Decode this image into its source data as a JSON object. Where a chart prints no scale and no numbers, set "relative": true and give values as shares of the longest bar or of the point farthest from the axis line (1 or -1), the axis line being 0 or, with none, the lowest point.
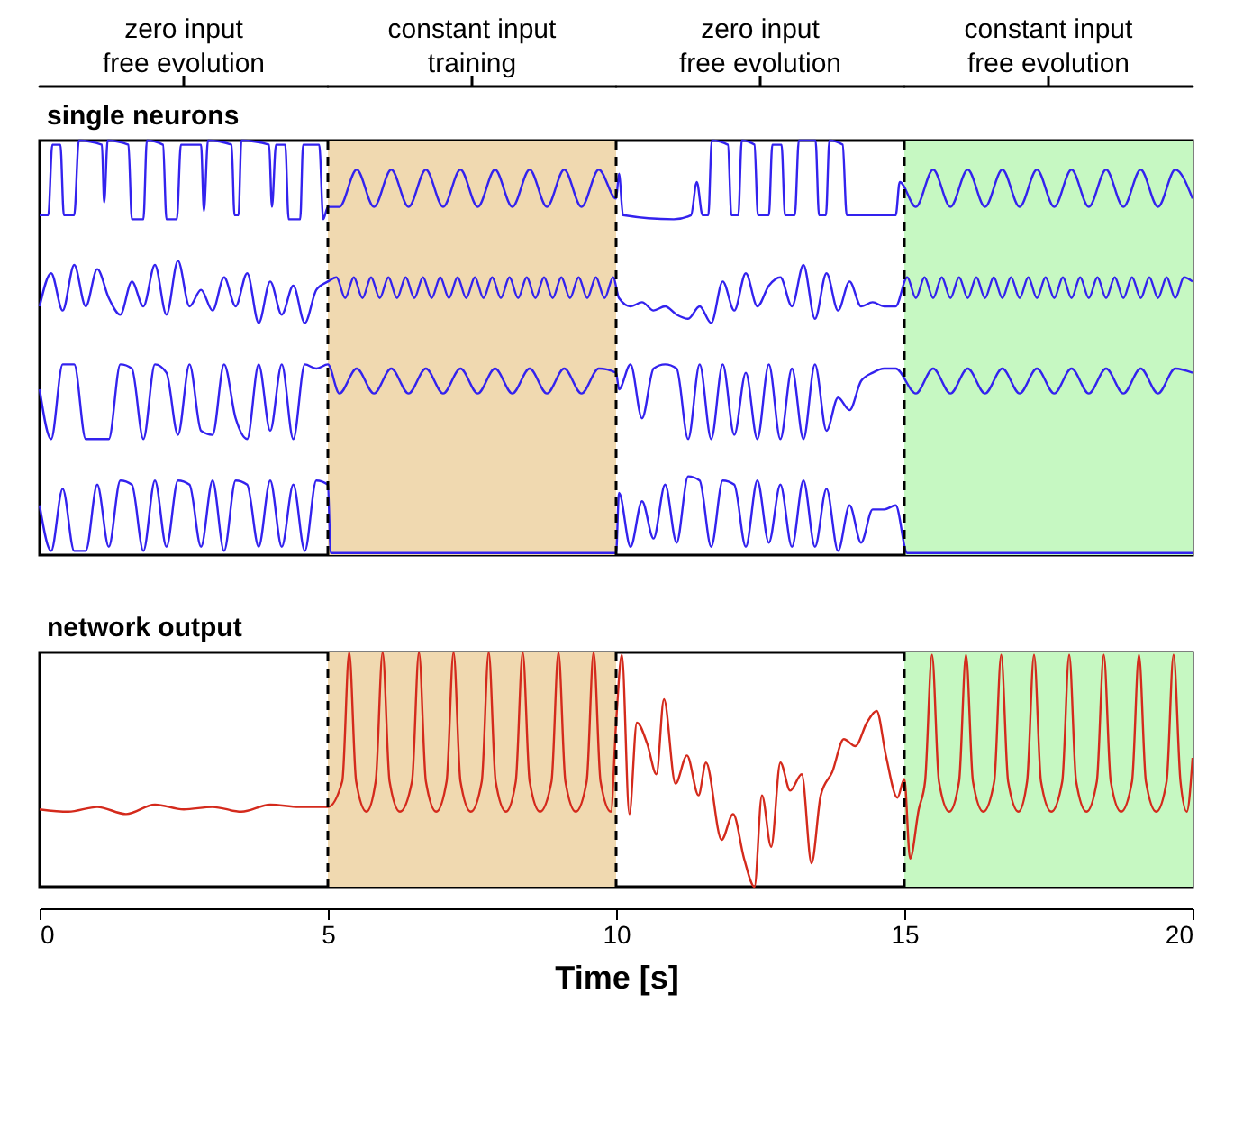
{
  "chart_data": [
    {
      "type": "line",
      "title": "single neurons",
      "relative": true,
      "xlim": [
        0,
        20
      ],
      "tick_labels": false,
      "line_style": "solid",
      "annotations": [
        "zero input\nfree evolution",
        "constant input\ntraining",
        "zero input\nfree evolution",
        "constant input\nfree evolution"
      ],
      "bands": [
        {
          "axis": "x",
          "from": 5,
          "to": 10,
          "color": "#f0d9b0"
        },
        {
          "axis": "x",
          "from": 15,
          "to": 20,
          "color": "#c6f8c2"
        }
      ],
      "ref_lines": [
        {
          "axis": "x",
          "value": 5,
          "line_style": "dashed"
        },
        {
          "axis": "x",
          "value": 10,
          "line_style": "dashed"
        },
        {
          "axis": "x",
          "value": 15,
          "line_style": "dashed"
        }
      ],
      "series": [
        {
          "color": "#3322ee",
          "x": [
            0,
            0.15,
            0.22,
            0.36,
            0.42,
            0.6,
            0.68,
            1.08,
            1.12,
            1.18,
            1.54,
            1.6,
            1.8,
            1.86,
            2.14,
            2.2,
            2.38,
            2.45,
            2.8,
            2.85,
            2.92,
            3.33,
            3.38,
            3.45,
            3.5,
            3.98,
            4.03,
            4.1,
            4.26,
            4.32,
            4.52,
            4.57,
            4.85,
            4.92,
            5.0,
            5.2,
            5.5,
            5.8,
            6.1,
            6.4,
            6.7,
            7.0,
            7.3,
            7.6,
            7.9,
            8.2,
            8.5,
            8.8,
            9.1,
            9.4,
            9.7,
            10.0,
            10.05,
            10.12,
            11.0,
            11.3,
            11.4,
            11.5,
            11.6,
            11.66,
            11.94,
            12.0,
            12.12,
            12.18,
            12.4,
            12.46,
            12.65,
            12.71,
            12.87,
            12.93,
            13.1,
            13.17,
            13.46,
            13.52,
            13.64,
            13.7,
            13.93,
            14.0,
            14.85,
            14.92,
            15.2,
            15.5,
            15.8,
            16.1,
            16.4,
            16.7,
            17.0,
            17.3,
            17.6,
            17.9,
            18.2,
            18.5,
            18.8,
            19.1,
            19.4,
            19.7,
            20.0
          ],
          "values": [
            0.82,
            0.82,
            0.99,
            0.99,
            0.82,
            0.82,
            1.0,
            0.99,
            0.85,
            1.0,
            0.99,
            0.81,
            0.81,
            1.0,
            0.99,
            0.81,
            0.81,
            0.99,
            0.99,
            0.83,
            1.0,
            0.99,
            0.82,
            0.82,
            1.0,
            0.99,
            0.84,
            0.99,
            0.99,
            0.81,
            0.81,
            0.99,
            0.99,
            0.81,
            0.84,
            0.84,
            0.93,
            0.84,
            0.93,
            0.84,
            0.93,
            0.84,
            0.93,
            0.84,
            0.93,
            0.84,
            0.93,
            0.84,
            0.93,
            0.84,
            0.93,
            0.86,
            0.92,
            0.82,
            0.81,
            0.82,
            0.9,
            0.82,
            0.82,
            1.0,
            0.99,
            0.82,
            0.82,
            1.0,
            0.99,
            0.82,
            0.82,
            0.99,
            0.99,
            0.82,
            0.82,
            1.0,
            1.0,
            0.82,
            0.82,
            1.0,
            0.99,
            0.82,
            0.82,
            0.9,
            0.84,
            0.93,
            0.84,
            0.93,
            0.84,
            0.93,
            0.84,
            0.93,
            0.84,
            0.93,
            0.84,
            0.93,
            0.84,
            0.93,
            0.84,
            0.93,
            0.86
          ]
        },
        {
          "color": "#3322ee",
          "x": [
            0,
            0.2,
            0.4,
            0.6,
            0.8,
            1.0,
            1.2,
            1.4,
            1.6,
            1.8,
            2.0,
            2.2,
            2.4,
            2.6,
            2.8,
            3.0,
            3.2,
            3.4,
            3.6,
            3.8,
            4.0,
            4.2,
            4.4,
            4.6,
            4.8,
            5.0,
            5.15,
            5.3,
            5.45,
            5.6,
            5.75,
            5.9,
            6.05,
            6.2,
            6.35,
            6.5,
            6.65,
            6.8,
            6.95,
            7.1,
            7.25,
            7.4,
            7.55,
            7.7,
            7.85,
            8.0,
            8.15,
            8.3,
            8.45,
            8.6,
            8.75,
            8.9,
            9.05,
            9.2,
            9.35,
            9.5,
            9.65,
            9.8,
            9.95,
            10.05,
            10.25,
            10.45,
            10.65,
            10.85,
            11.05,
            11.25,
            11.45,
            11.65,
            11.85,
            12.05,
            12.25,
            12.45,
            12.65,
            12.85,
            13.05,
            13.25,
            13.45,
            13.65,
            13.85,
            14.05,
            14.25,
            14.45,
            14.65,
            14.85,
            15.05,
            15.2,
            15.35,
            15.5,
            15.65,
            15.8,
            15.95,
            16.1,
            16.25,
            16.4,
            16.55,
            16.7,
            16.85,
            17.0,
            17.15,
            17.3,
            17.45,
            17.6,
            17.75,
            17.9,
            18.05,
            18.2,
            18.35,
            18.5,
            18.65,
            18.8,
            18.95,
            19.1,
            19.25,
            19.4,
            19.55,
            19.7,
            19.85,
            20.0
          ],
          "values": [
            0.6,
            0.68,
            0.59,
            0.7,
            0.6,
            0.69,
            0.62,
            0.58,
            0.66,
            0.6,
            0.7,
            0.58,
            0.71,
            0.6,
            0.64,
            0.59,
            0.67,
            0.6,
            0.68,
            0.56,
            0.66,
            0.58,
            0.65,
            0.56,
            0.64,
            0.66,
            0.67,
            0.62,
            0.67,
            0.62,
            0.67,
            0.62,
            0.67,
            0.62,
            0.67,
            0.62,
            0.67,
            0.62,
            0.67,
            0.62,
            0.67,
            0.62,
            0.67,
            0.62,
            0.67,
            0.62,
            0.67,
            0.62,
            0.67,
            0.62,
            0.67,
            0.62,
            0.67,
            0.62,
            0.67,
            0.62,
            0.67,
            0.62,
            0.67,
            0.62,
            0.6,
            0.61,
            0.59,
            0.6,
            0.58,
            0.57,
            0.6,
            0.56,
            0.66,
            0.59,
            0.68,
            0.6,
            0.65,
            0.67,
            0.6,
            0.7,
            0.57,
            0.68,
            0.59,
            0.66,
            0.6,
            0.61,
            0.6,
            0.6,
            0.67,
            0.62,
            0.67,
            0.62,
            0.67,
            0.62,
            0.67,
            0.62,
            0.67,
            0.62,
            0.67,
            0.62,
            0.67,
            0.62,
            0.67,
            0.62,
            0.67,
            0.62,
            0.67,
            0.62,
            0.67,
            0.62,
            0.67,
            0.62,
            0.67,
            0.62,
            0.67,
            0.62,
            0.67,
            0.62,
            0.67,
            0.62,
            0.67,
            0.66
          ]
        },
        {
          "color": "#3322ee",
          "x": [
            0,
            0.2,
            0.4,
            0.6,
            0.8,
            1.0,
            1.2,
            1.4,
            1.6,
            1.8,
            2.0,
            2.2,
            2.4,
            2.6,
            2.8,
            3.0,
            3.2,
            3.4,
            3.6,
            3.8,
            4.0,
            4.2,
            4.4,
            4.6,
            4.8,
            5.0,
            5.2,
            5.5,
            5.8,
            6.1,
            6.4,
            6.7,
            7.0,
            7.3,
            7.6,
            7.9,
            8.2,
            8.5,
            8.8,
            9.1,
            9.4,
            9.7,
            10.0,
            10.05,
            10.25,
            10.45,
            10.65,
            10.85,
            11.05,
            11.25,
            11.45,
            11.65,
            11.85,
            12.05,
            12.25,
            12.45,
            12.65,
            12.85,
            13.05,
            13.25,
            13.45,
            13.65,
            13.85,
            14.05,
            14.25,
            14.45,
            14.65,
            14.85,
            15.2,
            15.5,
            15.8,
            16.1,
            16.4,
            16.7,
            17.0,
            17.3,
            17.6,
            17.9,
            18.2,
            18.5,
            18.8,
            19.1,
            19.4,
            19.7,
            20.0
          ],
          "values": [
            0.4,
            0.28,
            0.46,
            0.46,
            0.28,
            0.28,
            0.28,
            0.46,
            0.45,
            0.28,
            0.46,
            0.44,
            0.29,
            0.46,
            0.3,
            0.29,
            0.46,
            0.33,
            0.28,
            0.46,
            0.3,
            0.46,
            0.28,
            0.46,
            0.45,
            0.46,
            0.39,
            0.45,
            0.39,
            0.45,
            0.39,
            0.45,
            0.39,
            0.45,
            0.39,
            0.45,
            0.39,
            0.45,
            0.39,
            0.45,
            0.39,
            0.45,
            0.44,
            0.4,
            0.46,
            0.33,
            0.45,
            0.46,
            0.45,
            0.28,
            0.46,
            0.28,
            0.46,
            0.29,
            0.44,
            0.28,
            0.46,
            0.28,
            0.45,
            0.28,
            0.46,
            0.3,
            0.38,
            0.35,
            0.42,
            0.44,
            0.45,
            0.45,
            0.39,
            0.45,
            0.39,
            0.45,
            0.39,
            0.45,
            0.39,
            0.45,
            0.39,
            0.45,
            0.39,
            0.45,
            0.39,
            0.45,
            0.39,
            0.45,
            0.44
          ]
        },
        {
          "color": "#3322ee",
          "x": [
            0,
            0.2,
            0.4,
            0.6,
            0.8,
            1.0,
            1.2,
            1.4,
            1.6,
            1.8,
            2.0,
            2.2,
            2.4,
            2.6,
            2.8,
            3.0,
            3.2,
            3.4,
            3.6,
            3.8,
            4.0,
            4.2,
            4.4,
            4.6,
            4.8,
            5.0,
            5.05,
            10.0,
            10.05,
            10.25,
            10.45,
            10.65,
            10.85,
            11.05,
            11.25,
            11.45,
            11.65,
            11.85,
            12.05,
            12.25,
            12.45,
            12.65,
            12.85,
            13.05,
            13.25,
            13.45,
            13.65,
            13.85,
            14.05,
            14.25,
            14.45,
            14.65,
            14.85,
            15.05,
            20.0
          ],
          "values": [
            0.12,
            0.01,
            0.16,
            0.01,
            0.01,
            0.17,
            0.02,
            0.18,
            0.17,
            0.01,
            0.18,
            0.02,
            0.18,
            0.17,
            0.02,
            0.18,
            0.01,
            0.18,
            0.17,
            0.02,
            0.18,
            0.02,
            0.17,
            0.01,
            0.18,
            0.17,
            0.005,
            0.005,
            0.15,
            0.02,
            0.13,
            0.04,
            0.17,
            0.03,
            0.19,
            0.18,
            0.02,
            0.18,
            0.17,
            0.02,
            0.18,
            0.03,
            0.17,
            0.02,
            0.18,
            0.02,
            0.16,
            0.01,
            0.12,
            0.03,
            0.11,
            0.11,
            0.12,
            0.005,
            0.005
          ]
        }
      ]
    },
    {
      "type": "line",
      "title": "network output",
      "relative": true,
      "xlim": [
        0,
        20
      ],
      "xticks": [
        0,
        5,
        10,
        15,
        20
      ],
      "xlabel": "Time [s]",
      "tick_labels": "x",
      "line_style": "solid",
      "bands": [
        {
          "axis": "x",
          "from": 5,
          "to": 10,
          "color": "#f0d9b0"
        },
        {
          "axis": "x",
          "from": 15,
          "to": 20,
          "color": "#c6f8c2"
        }
      ],
      "ref_lines": [
        {
          "axis": "x",
          "value": 5,
          "line_style": "dashed"
        },
        {
          "axis": "x",
          "value": 10,
          "line_style": "dashed"
        },
        {
          "axis": "x",
          "value": 15,
          "line_style": "dashed"
        }
      ],
      "series": [
        {
          "color": "#d42a1c",
          "x": [
            0,
            0.5,
            1.0,
            1.5,
            2.0,
            2.5,
            3.0,
            3.5,
            4.0,
            4.5,
            5.0,
            5.25,
            5.37,
            5.49,
            5.67,
            5.83,
            5.95,
            6.07,
            6.25,
            6.46,
            6.58,
            6.7,
            6.88,
            7.06,
            7.18,
            7.3,
            7.48,
            7.67,
            7.79,
            7.91,
            8.09,
            8.26,
            8.38,
            8.5,
            8.68,
            8.88,
            9.0,
            9.12,
            9.3,
            9.49,
            9.61,
            9.73,
            9.91,
            10.0,
            10.1,
            10.23,
            10.36,
            10.54,
            10.7,
            10.83,
            11.03,
            11.23,
            11.43,
            11.56,
            11.83,
            12.03,
            12.22,
            12.4,
            12.53,
            12.69,
            12.85,
            13.02,
            13.22,
            13.39,
            13.55,
            13.75,
            13.95,
            14.15,
            14.35,
            14.52,
            14.68,
            14.88,
            15.0,
            15.1,
            15.25,
            15.36,
            15.48,
            15.6,
            15.78,
            15.95,
            16.07,
            16.19,
            16.37,
            16.56,
            16.68,
            16.8,
            16.98,
            17.13,
            17.25,
            17.37,
            17.55,
            17.74,
            17.86,
            17.98,
            18.16,
            18.34,
            18.46,
            18.58,
            18.76,
            18.95,
            19.07,
            19.19,
            19.37,
            19.55,
            19.67,
            19.79,
            19.9,
            20.0
          ],
          "values": [
            0.33,
            0.32,
            0.34,
            0.31,
            0.35,
            0.33,
            0.34,
            0.32,
            0.35,
            0.34,
            0.34,
            0.45,
            1.0,
            0.45,
            0.32,
            0.45,
            1.0,
            0.45,
            0.32,
            0.45,
            1.0,
            0.45,
            0.32,
            0.45,
            1.0,
            0.45,
            0.32,
            0.45,
            1.0,
            0.45,
            0.32,
            0.45,
            1.0,
            0.45,
            0.32,
            0.45,
            1.0,
            0.45,
            0.32,
            0.45,
            1.0,
            0.45,
            0.32,
            0.7,
            0.99,
            0.31,
            0.7,
            0.61,
            0.48,
            0.8,
            0.44,
            0.56,
            0.39,
            0.53,
            0.2,
            0.31,
            0.12,
            0.0,
            0.39,
            0.17,
            0.53,
            0.41,
            0.48,
            0.1,
            0.39,
            0.49,
            0.63,
            0.6,
            0.7,
            0.75,
            0.56,
            0.38,
            0.46,
            0.12,
            0.33,
            0.45,
            0.99,
            0.45,
            0.32,
            0.45,
            0.99,
            0.45,
            0.32,
            0.45,
            0.99,
            0.45,
            0.32,
            0.45,
            0.99,
            0.45,
            0.32,
            0.45,
            0.99,
            0.45,
            0.32,
            0.45,
            0.99,
            0.45,
            0.32,
            0.45,
            0.99,
            0.45,
            0.32,
            0.45,
            0.99,
            0.45,
            0.32,
            0.55
          ]
        }
      ]
    }
  ]
}
